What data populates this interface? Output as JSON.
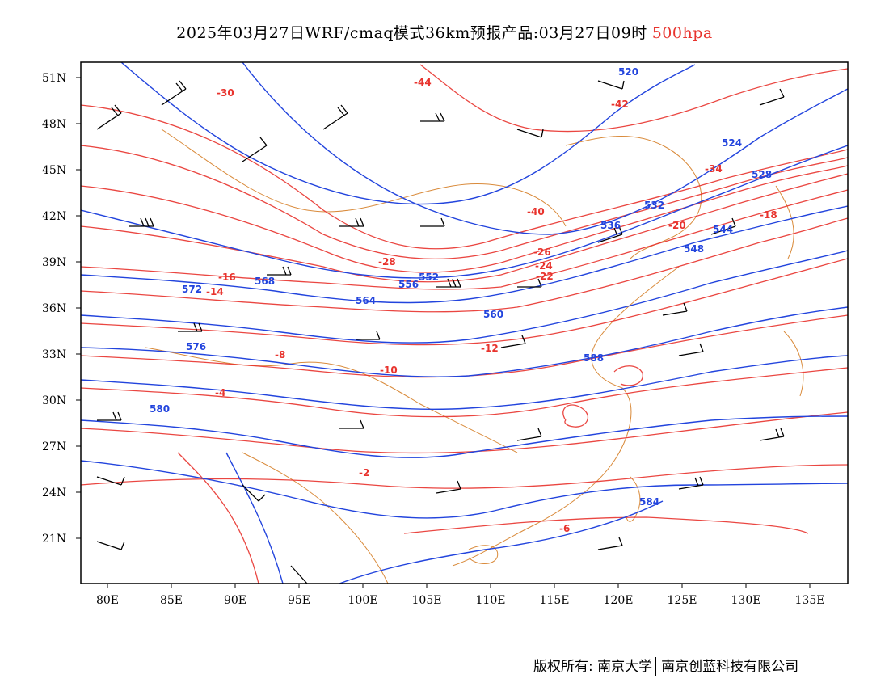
{
  "title": {
    "main": "2025年03月27日WRF/cmaq模式36km预报产品:03月27日09时",
    "level": "500hpa"
  },
  "axes": {
    "lat_labels": [
      "51N",
      "48N",
      "45N",
      "42N",
      "39N",
      "36N",
      "33N",
      "30N",
      "27N",
      "24N",
      "21N"
    ],
    "lon_labels": [
      "80E",
      "85E",
      "90E",
      "95E",
      "100E",
      "105E",
      "110E",
      "115E",
      "120E",
      "125E",
      "130E",
      "135E"
    ]
  },
  "geopotential_labels": [
    "520",
    "524",
    "528",
    "532",
    "536",
    "544",
    "548",
    "552",
    "556",
    "560",
    "564",
    "568",
    "572",
    "576",
    "580",
    "584",
    "588"
  ],
  "temperature_labels": [
    "-44",
    "-42",
    "-40",
    "-34",
    "-30",
    "-28",
    "-26",
    "-24",
    "-22",
    "-20",
    "-18",
    "-16",
    "-14",
    "-12",
    "-10",
    "-8",
    "-6",
    "-4",
    "-2"
  ],
  "colors": {
    "height_contour": "#2244dd",
    "temperature_contour": "#e8332d",
    "coastline": "#d98a3a",
    "wind_barb": "#000000",
    "level_highlight": "#e8332d"
  },
  "footer": {
    "left": "版权所有: 南京大学",
    "right": "南京创蓝科技有限公司"
  }
}
